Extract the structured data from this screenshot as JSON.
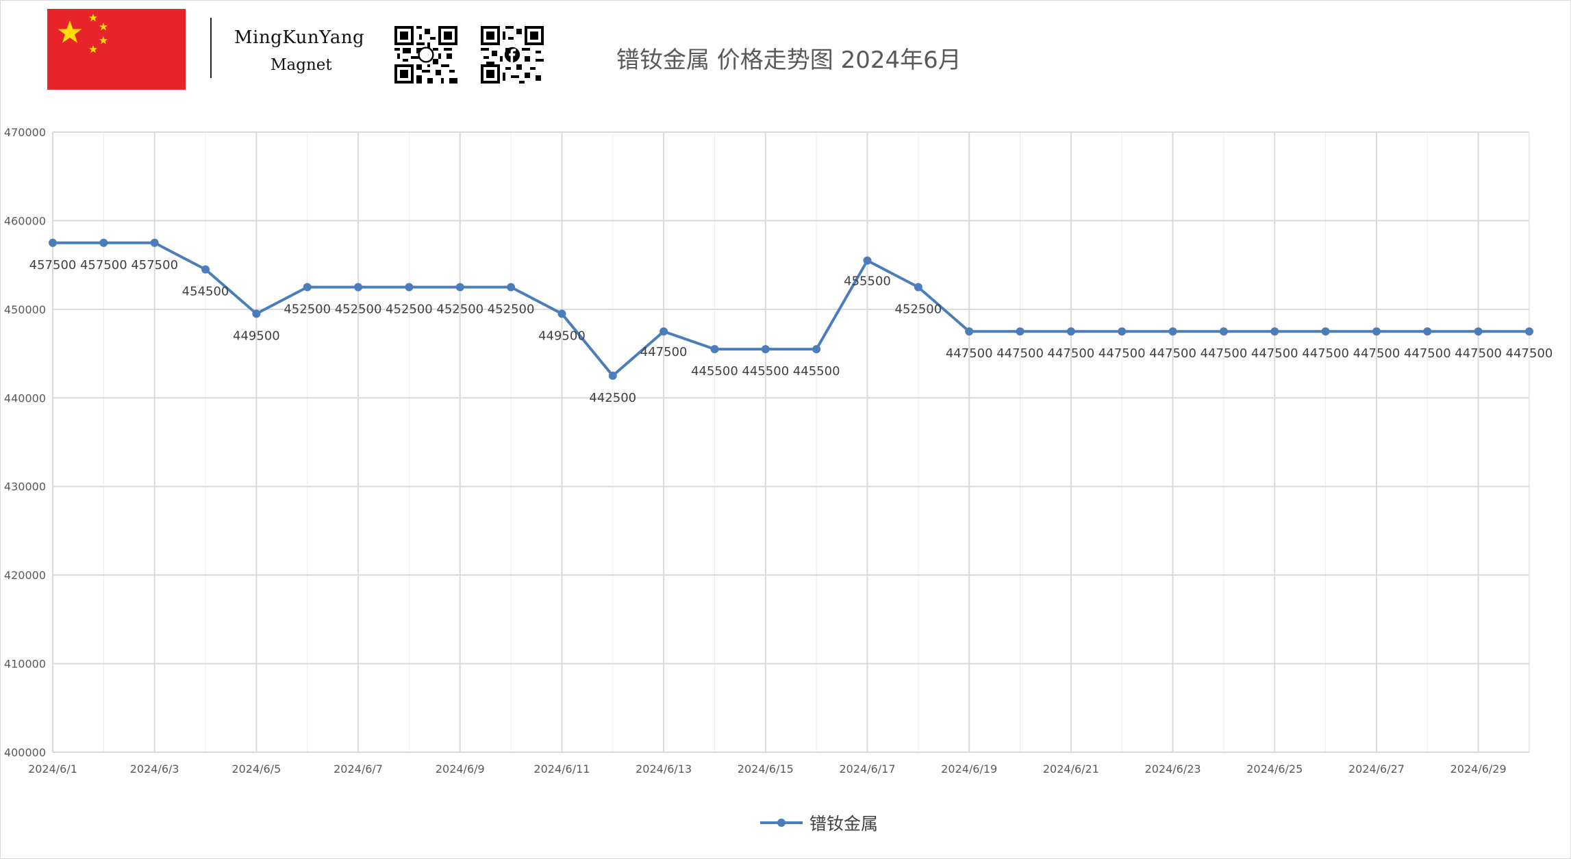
{
  "header": {
    "brand_name": "MingKunYang",
    "brand_sub": "Magnet",
    "title": "镨钕金属  价格走势图 2024年6月"
  },
  "colors": {
    "flag_red": "#e8242b",
    "flag_star": "#ffde00",
    "series": "#4a7ebb",
    "grid": "#d9d9d9",
    "label": "#404040"
  },
  "chart_data": {
    "type": "line",
    "title": "镨钕金属  价格走势图 2024年6月",
    "xlabel": "",
    "ylabel": "",
    "ylim": [
      400000,
      470000
    ],
    "yticks": [
      "400000",
      "410000",
      "420000",
      "430000",
      "440000",
      "450000",
      "460000",
      "470000"
    ],
    "x": [
      "2024/6/1",
      "2024/6/2",
      "2024/6/3",
      "2024/6/4",
      "2024/6/5",
      "2024/6/6",
      "2024/6/7",
      "2024/6/8",
      "2024/6/9",
      "2024/6/10",
      "2024/6/11",
      "2024/6/12",
      "2024/6/13",
      "2024/6/14",
      "2024/6/15",
      "2024/6/16",
      "2024/6/17",
      "2024/6/18",
      "2024/6/19",
      "2024/6/20",
      "2024/6/21",
      "2024/6/22",
      "2024/6/23",
      "2024/6/24",
      "2024/6/25",
      "2024/6/26",
      "2024/6/27",
      "2024/6/28",
      "2024/6/29",
      "2024/6/30"
    ],
    "xtick_labels": [
      "2024/6/1",
      "",
      "2024/6/3",
      "",
      "2024/6/5",
      "",
      "2024/6/7",
      "",
      "2024/6/9",
      "",
      "2024/6/11",
      "",
      "2024/6/13",
      "",
      "2024/6/15",
      "",
      "2024/6/17",
      "",
      "2024/6/19",
      "",
      "2024/6/21",
      "",
      "2024/6/23",
      "",
      "2024/6/25",
      "",
      "2024/6/27",
      "",
      "2024/6/29",
      ""
    ],
    "series": [
      {
        "name": "镨钕金属",
        "values": [
          457500,
          457500,
          457500,
          454500,
          449500,
          452500,
          452500,
          452500,
          452500,
          452500,
          449500,
          442500,
          447500,
          445500,
          445500,
          445500,
          455500,
          452500,
          447500,
          447500,
          447500,
          447500,
          447500,
          447500,
          447500,
          447500,
          447500,
          447500,
          447500,
          447500
        ]
      }
    ],
    "grid": true,
    "legend": "bottom"
  }
}
